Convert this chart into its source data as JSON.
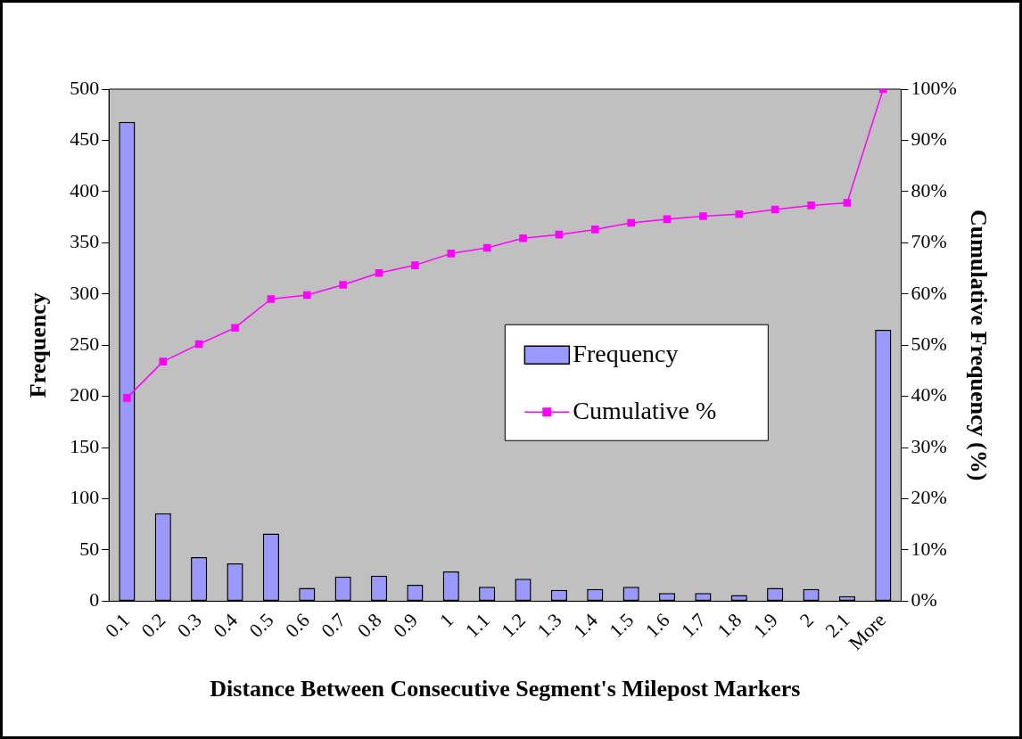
{
  "chart_data": {
    "type": "bar",
    "xlabel": "Distance Between Consecutive Segment's Milepost Markers",
    "ylabel": "Frequency",
    "y2label": "Cumulative Frequency (%)",
    "categories": [
      "0.1",
      "0.2",
      "0.3",
      "0.4",
      "0.5",
      "0.6",
      "0.7",
      "0.8",
      "0.9",
      "1",
      "1.1",
      "1.2",
      "1.3",
      "1.4",
      "1.5",
      "1.6",
      "1.7",
      "1.8",
      "1.9",
      "2",
      "2.1",
      "More"
    ],
    "series": [
      {
        "name": "Frequency",
        "color": "#9999ff",
        "values": [
          468,
          86,
          43,
          37,
          66,
          13,
          24,
          25,
          16,
          29,
          14,
          22,
          11,
          12,
          14,
          8,
          8,
          6,
          13,
          12,
          5,
          265
        ]
      },
      {
        "name": "Cumulative %",
        "type": "line",
        "axis": "y2",
        "color": "#ff00ff",
        "values": [
          39.7,
          46.8,
          50.2,
          53.4,
          59.0,
          59.8,
          61.8,
          64.1,
          65.6,
          67.9,
          69.0,
          70.9,
          71.6,
          72.6,
          73.9,
          74.6,
          75.2,
          75.6,
          76.5,
          77.3,
          77.8,
          100
        ]
      }
    ],
    "ylim": [
      0,
      500
    ],
    "yticks": [
      0,
      50,
      100,
      150,
      200,
      250,
      300,
      350,
      400,
      450,
      500
    ],
    "y2lim": [
      0,
      100
    ],
    "y2ticks": [
      {
        "value": 0,
        "label": "0%"
      },
      {
        "value": 10,
        "label": "10%"
      },
      {
        "value": 20,
        "label": "20%"
      },
      {
        "value": 30,
        "label": "30%"
      },
      {
        "value": 40,
        "label": "40%"
      },
      {
        "value": 50,
        "label": "50%"
      },
      {
        "value": 60,
        "label": "60%"
      },
      {
        "value": 70,
        "label": "70%"
      },
      {
        "value": 80,
        "label": "80%"
      },
      {
        "value": 90,
        "label": "90%"
      },
      {
        "value": 100,
        "label": "100%"
      }
    ],
    "grid": false,
    "legend": "right",
    "marker": "square",
    "line_style": "solid"
  }
}
